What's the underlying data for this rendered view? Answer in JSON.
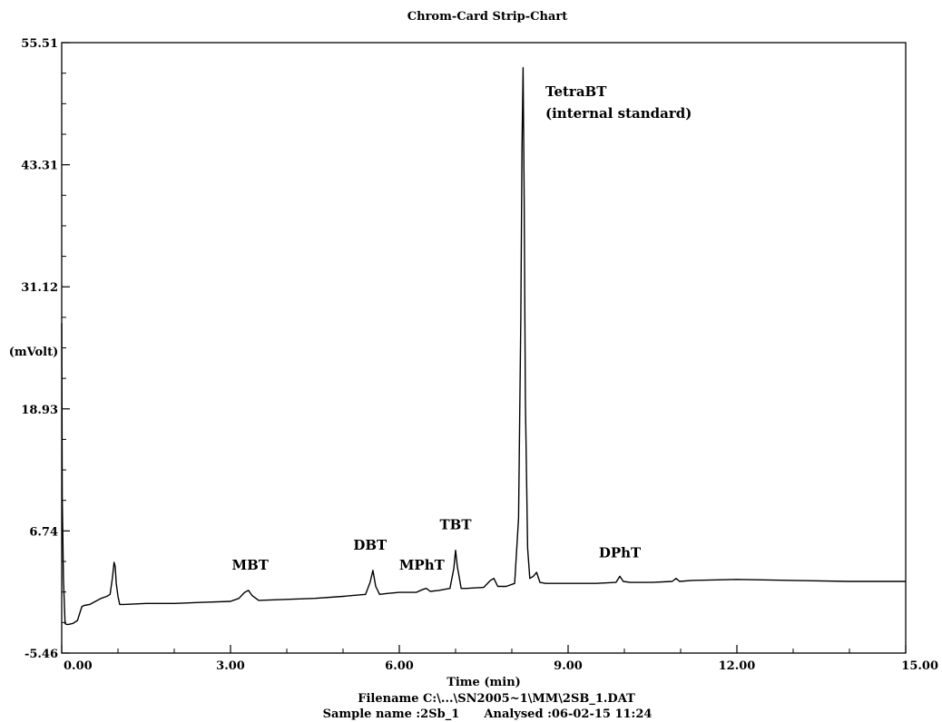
{
  "chart_data": {
    "type": "line",
    "title": "Chrom-Card Strip-Chart",
    "xlabel": "Time (min)",
    "ylabel": "(mVolt)",
    "xlim": [
      0,
      15
    ],
    "ylim": [
      -5.46,
      55.51
    ],
    "x_ticks": [
      "0.00",
      "3.00",
      "6.00",
      "9.00",
      "12.00",
      "15.00"
    ],
    "y_ticks": [
      "-5.46",
      "6.74",
      "18.93",
      "31.12",
      "43.31",
      "55.51"
    ],
    "grid": false,
    "series": [
      {
        "x": [
          0.0,
          0.01,
          0.03,
          0.05,
          0.06,
          0.08,
          0.12,
          0.2,
          0.28,
          0.32,
          0.36,
          0.4,
          0.5,
          0.6,
          0.7,
          0.8,
          0.86,
          0.9,
          0.93,
          0.95,
          0.97,
          1.0,
          1.03,
          1.1,
          1.5,
          2.0,
          2.5,
          3.0,
          3.15,
          3.25,
          3.32,
          3.38,
          3.5,
          4.0,
          4.5,
          5.0,
          5.4,
          5.48,
          5.53,
          5.58,
          5.65,
          5.8,
          6.0,
          6.3,
          6.42,
          6.48,
          6.55,
          6.7,
          6.9,
          6.97,
          7.0,
          7.03,
          7.1,
          7.2,
          7.5,
          7.62,
          7.68,
          7.75,
          7.9,
          8.05,
          8.12,
          8.16,
          8.18,
          8.2,
          8.22,
          8.24,
          8.28,
          8.32,
          8.38,
          8.44,
          8.5,
          8.6,
          9.0,
          9.5,
          9.85,
          9.92,
          9.98,
          10.1,
          10.5,
          10.85,
          10.92,
          10.98,
          11.2,
          12.0,
          13.0,
          14.0,
          15.0
        ],
        "y": [
          27.5,
          10.0,
          2.0,
          -1.0,
          -2.5,
          -2.6,
          -2.6,
          -2.5,
          -2.2,
          -1.5,
          -0.8,
          -0.7,
          -0.6,
          -0.3,
          0.0,
          0.2,
          0.4,
          2.0,
          3.6,
          3.2,
          1.5,
          0.2,
          -0.6,
          -0.6,
          -0.5,
          -0.5,
          -0.4,
          -0.3,
          0.0,
          0.6,
          0.8,
          0.3,
          -0.2,
          -0.1,
          0.0,
          0.2,
          0.4,
          1.6,
          2.8,
          1.2,
          0.4,
          0.5,
          0.6,
          0.6,
          0.9,
          1.0,
          0.7,
          0.8,
          1.0,
          3.0,
          4.8,
          3.2,
          1.0,
          1.0,
          1.1,
          1.8,
          2.0,
          1.2,
          1.2,
          1.5,
          8.0,
          28.0,
          45.0,
          53.0,
          40.0,
          20.0,
          5.0,
          2.0,
          2.2,
          2.6,
          1.6,
          1.5,
          1.5,
          1.5,
          1.6,
          2.2,
          1.7,
          1.6,
          1.6,
          1.7,
          2.0,
          1.7,
          1.8,
          1.9,
          1.8,
          1.7,
          1.7
        ]
      }
    ],
    "annotations": [
      {
        "text": "MBT",
        "x": 3.35,
        "y": 1.8
      },
      {
        "text": "DBT",
        "x": 5.48,
        "y": 3.8
      },
      {
        "text": "MPhT",
        "x": 6.4,
        "y": 1.8
      },
      {
        "text": "TBT",
        "x": 7.0,
        "y": 5.8
      },
      {
        "text": "DPhT",
        "x": 9.92,
        "y": 3.0
      }
    ],
    "annotation_tetrabt": {
      "line1": "TetraBT",
      "line2": "(internal standard)",
      "x": 8.28,
      "y": 48.5
    }
  },
  "footer": {
    "filename": "Filename C:\\...\\SN2005~1\\MM\\2SB_1.DAT",
    "sample": "Sample name :2Sb_1      Analysed :06-02-15 11:24"
  },
  "colors": {
    "line": "#000000",
    "axis": "#000000",
    "background": "#ffffff"
  }
}
